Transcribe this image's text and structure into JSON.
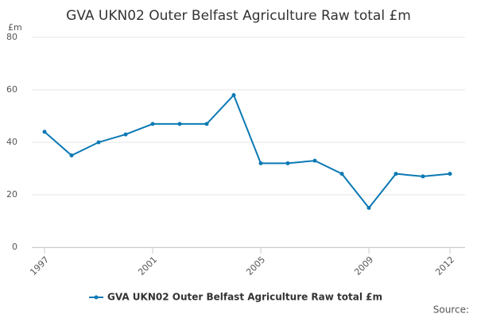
{
  "chart_data": {
    "type": "line",
    "title": "GVA UKN02 Outer Belfast Agriculture Raw total £m",
    "y_unit": "£m",
    "source": "Source:",
    "x": [
      1997,
      1998,
      1999,
      2000,
      2001,
      2002,
      2003,
      2004,
      2005,
      2006,
      2007,
      2008,
      2009,
      2010,
      2011,
      2012
    ],
    "series": [
      {
        "name": "GVA UKN02 Outer Belfast Agriculture Raw total £m",
        "color": "#0b79b4",
        "values": [
          44,
          35,
          40,
          43,
          47,
          47,
          47,
          58,
          32,
          32,
          33,
          28,
          15,
          28,
          27,
          28
        ]
      }
    ],
    "xlim": [
      1997,
      2012
    ],
    "xticks": [
      1997,
      2001,
      2005,
      2009,
      2012
    ],
    "ylim": [
      0,
      80
    ],
    "yticks": [
      0,
      20,
      40,
      60,
      80
    ],
    "grid": true
  }
}
